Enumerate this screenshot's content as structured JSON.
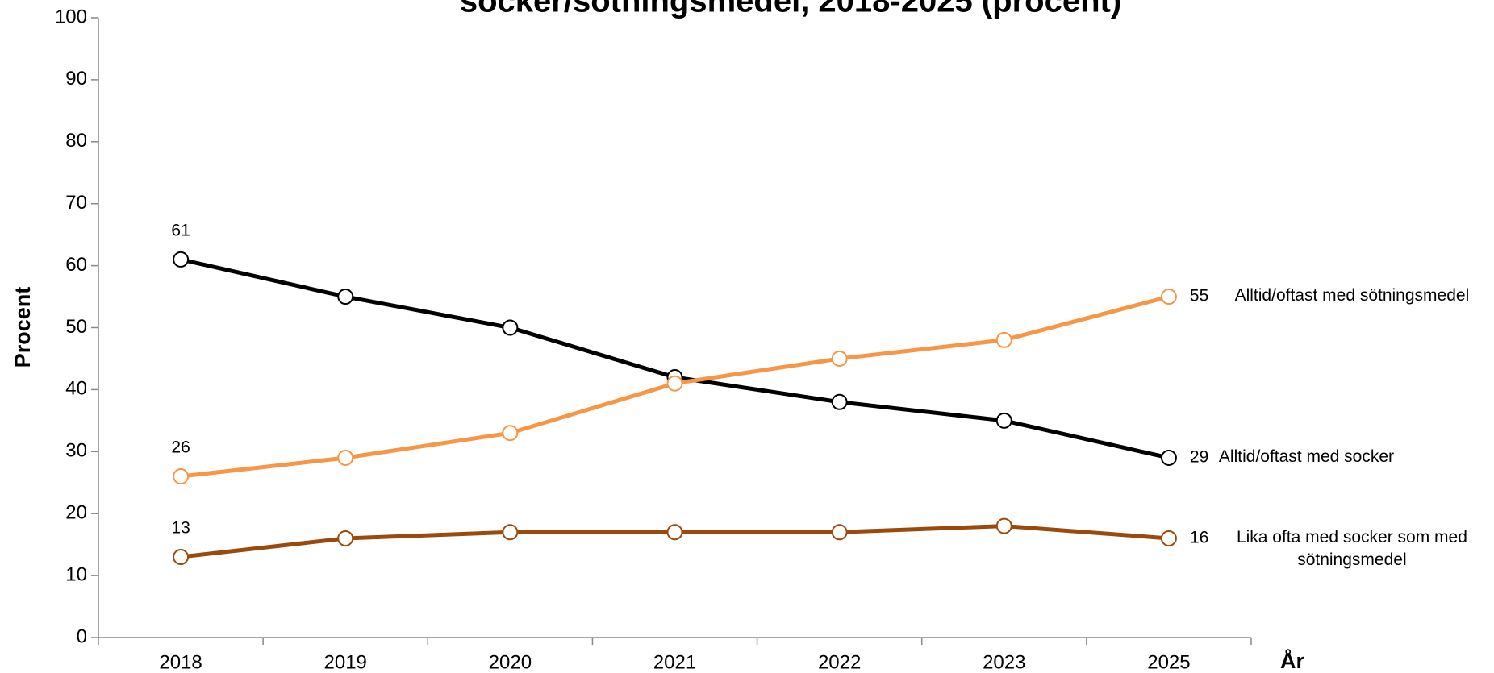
{
  "chart_data": {
    "type": "line",
    "title": "socker/sötningsmedel, 2018-2025 (procent)",
    "y_label": "Procent",
    "x_label": "År",
    "categories": [
      "2018",
      "2019",
      "2020",
      "2021",
      "2022",
      "2023",
      "2025"
    ],
    "series": [
      {
        "name": "Alltid/oftast med socker",
        "color": "#000000",
        "values": [
          61,
          55,
          50,
          42,
          38,
          35,
          29
        ]
      },
      {
        "name": "Alltid/oftast med sötningsmedel",
        "color": "#f79646",
        "values": [
          26,
          29,
          33,
          41,
          45,
          48,
          55
        ]
      },
      {
        "name": "Lika ofta med socker som med sötningsmedel",
        "color": "#9c4a0c",
        "values": [
          13,
          16,
          17,
          17,
          17,
          18,
          16
        ]
      }
    ],
    "ylim": [
      0,
      100
    ],
    "yticks": [
      0,
      10,
      20,
      30,
      40,
      50,
      60,
      70,
      80,
      90,
      100
    ],
    "grid": false
  }
}
